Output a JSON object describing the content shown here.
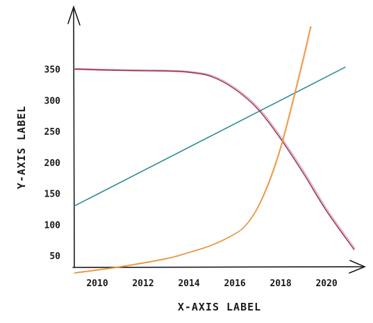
{
  "chart_data": {
    "type": "line",
    "xlabel": "X-AXIS LABEL",
    "ylabel": "Y-AXIS LABEL",
    "x_ticks": [
      2010,
      2012,
      2014,
      2016,
      2018,
      2020
    ],
    "y_ticks": [
      50,
      100,
      150,
      200,
      250,
      300,
      350
    ],
    "xlim": [
      2009,
      2021.3
    ],
    "ylim": [
      20,
      420
    ],
    "grid": false,
    "series": [
      {
        "color": "#2a8a94",
        "x": [
          2009,
          2020.8
        ],
        "y": [
          130,
          353
        ]
      },
      {
        "color": "#9b2a57",
        "x": [
          2009,
          2011,
          2013,
          2014,
          2015,
          2016,
          2017,
          2018,
          2019,
          2020,
          2021.2
        ],
        "y": [
          350,
          348,
          347,
          345,
          338,
          318,
          286,
          238,
          182,
          122,
          60
        ]
      },
      {
        "color": "#e8923a",
        "x": [
          2009,
          2011,
          2013,
          2014,
          2015,
          2016,
          2016.5,
          2017,
          2017.5,
          2018,
          2018.5,
          2019,
          2019.3
        ],
        "y": [
          22,
          32,
          45,
          55,
          67,
          85,
          100,
          128,
          170,
          225,
          295,
          370,
          418
        ]
      }
    ]
  }
}
